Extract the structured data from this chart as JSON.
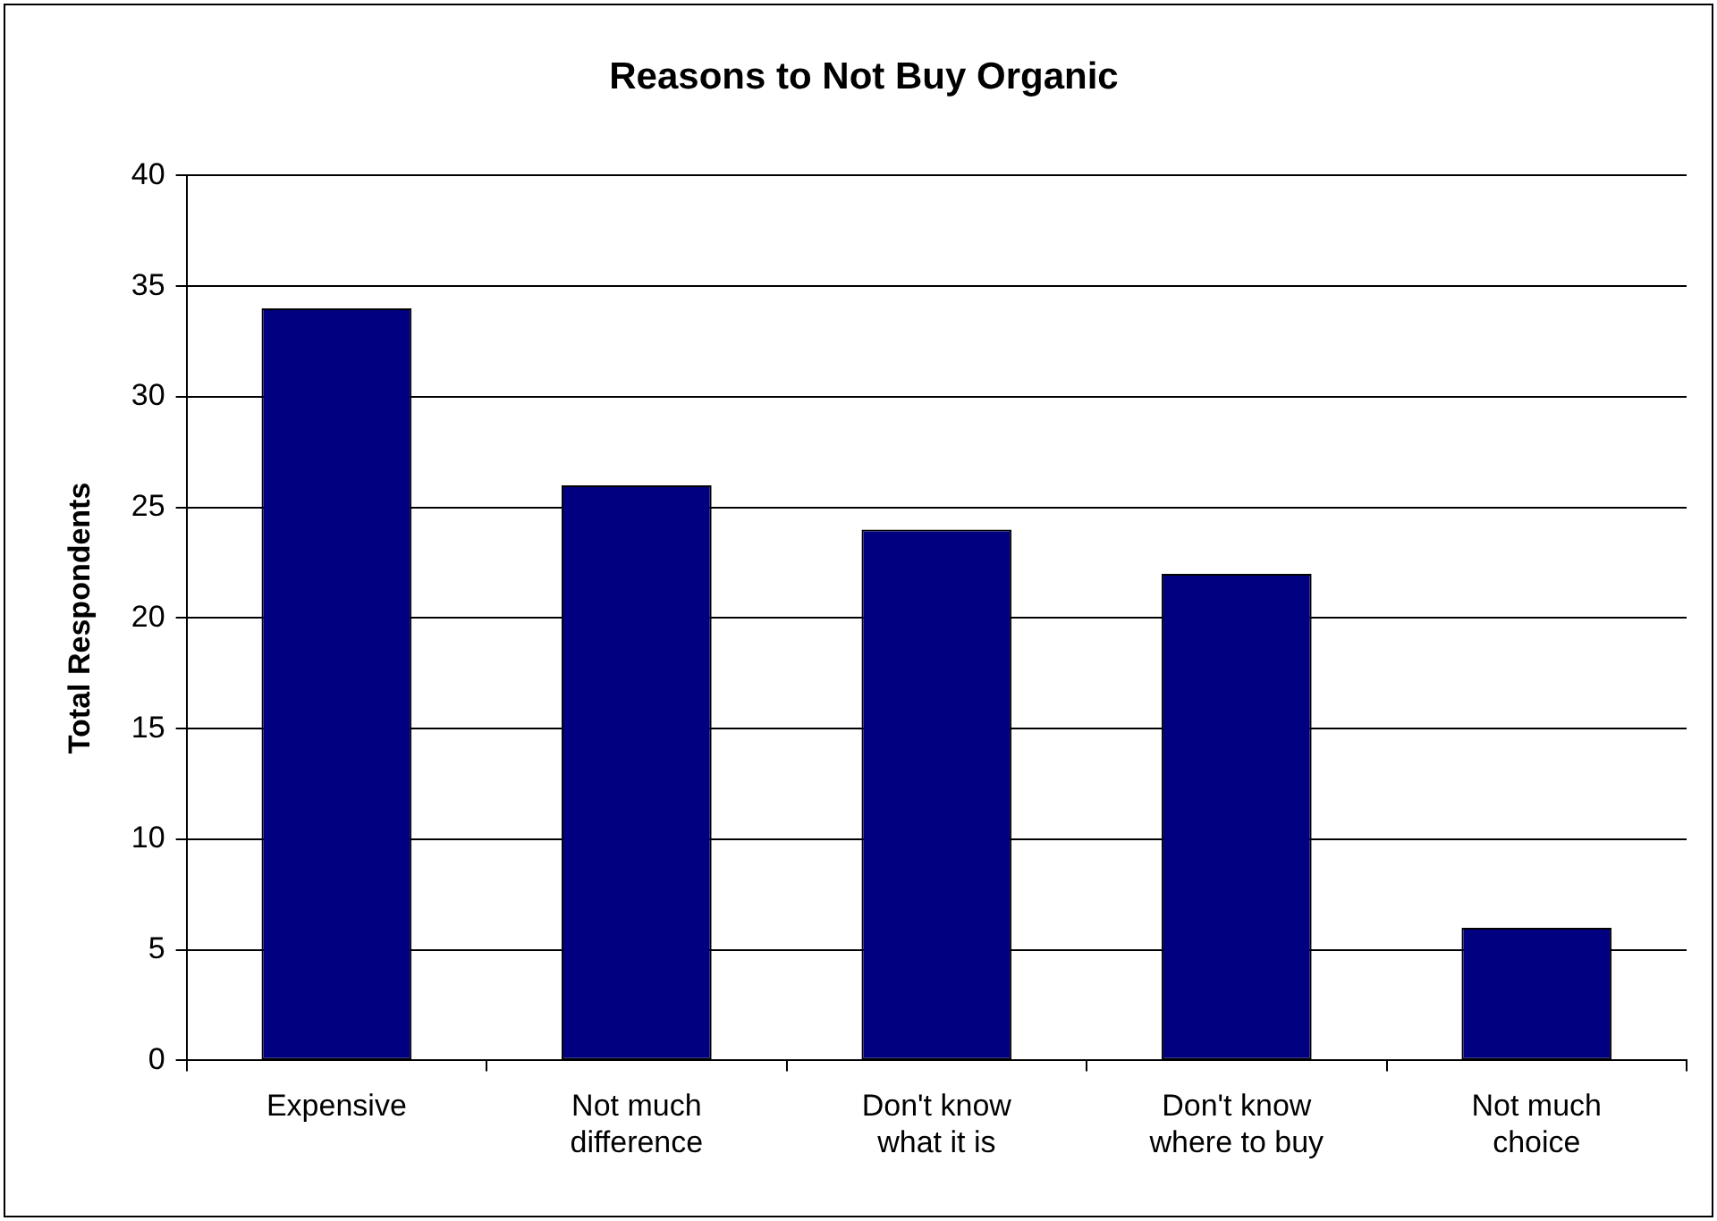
{
  "chart_data": {
    "type": "bar",
    "title": "Reasons to Not Buy Organic",
    "ylabel": "Total Respondents",
    "categories": [
      "Expensive",
      "Not much difference",
      "Don't know what it is",
      "Don't know where to buy",
      "Not much choice"
    ],
    "values": [
      34,
      26,
      24,
      22,
      6
    ],
    "color": "#000080",
    "ylim": [
      0,
      40
    ],
    "yticks": [
      0,
      5,
      10,
      15,
      20,
      25,
      30,
      35,
      40
    ],
    "grid": "y",
    "legend": false
  }
}
